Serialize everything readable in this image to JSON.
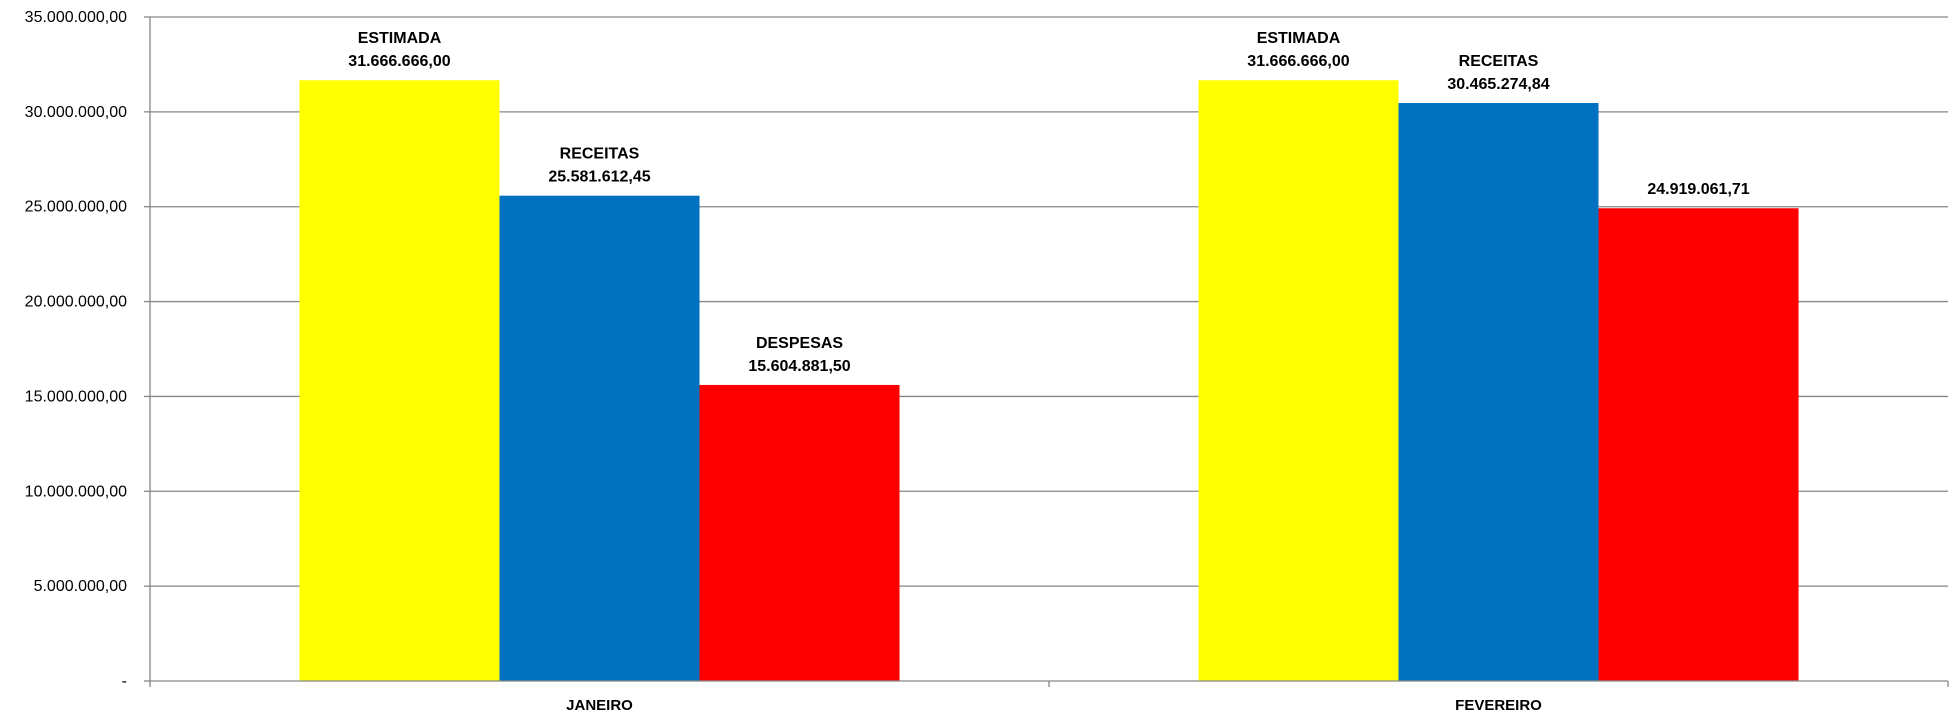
{
  "chart_data": {
    "type": "bar",
    "title": "",
    "xlabel": "",
    "ylabel": "",
    "categories": [
      "JANEIRO",
      "FEVEREIRO"
    ],
    "ylim": [
      0,
      35000000
    ],
    "yticks": [
      {
        "value": 0,
        "label": "-"
      },
      {
        "value": 5000000,
        "label": "5.000.000,00"
      },
      {
        "value": 10000000,
        "label": "10.000.000,00"
      },
      {
        "value": 15000000,
        "label": "15.000.000,00"
      },
      {
        "value": 20000000,
        "label": "20.000.000,00"
      },
      {
        "value": 25000000,
        "label": "25.000.000,00"
      },
      {
        "value": 30000000,
        "label": "30.000.000,00"
      },
      {
        "value": 35000000,
        "label": "35.000.000,00"
      }
    ],
    "grid": true,
    "legend": "none",
    "series": [
      {
        "color": "#FFFF00",
        "values": [
          31666666.0,
          31666666.0
        ],
        "labels": [
          {
            "name": "ESTIMADA",
            "value": "31.666.666,00"
          },
          {
            "name": "ESTIMADA",
            "value": "31.666.666,00"
          }
        ]
      },
      {
        "color": "#0070C0",
        "values": [
          25581612.45,
          30465274.84
        ],
        "labels": [
          {
            "name": "RECEITAS",
            "value": "25.581.612,45"
          },
          {
            "name": "RECEITAS",
            "value": "30.465.274,84"
          }
        ]
      },
      {
        "color": "#FF0000",
        "values": [
          15604881.5,
          24919061.71
        ],
        "labels": [
          {
            "name": "DESPESAS",
            "value": "15.604.881,50"
          },
          {
            "name": "",
            "value": "24.919.061,71"
          }
        ]
      }
    ]
  }
}
